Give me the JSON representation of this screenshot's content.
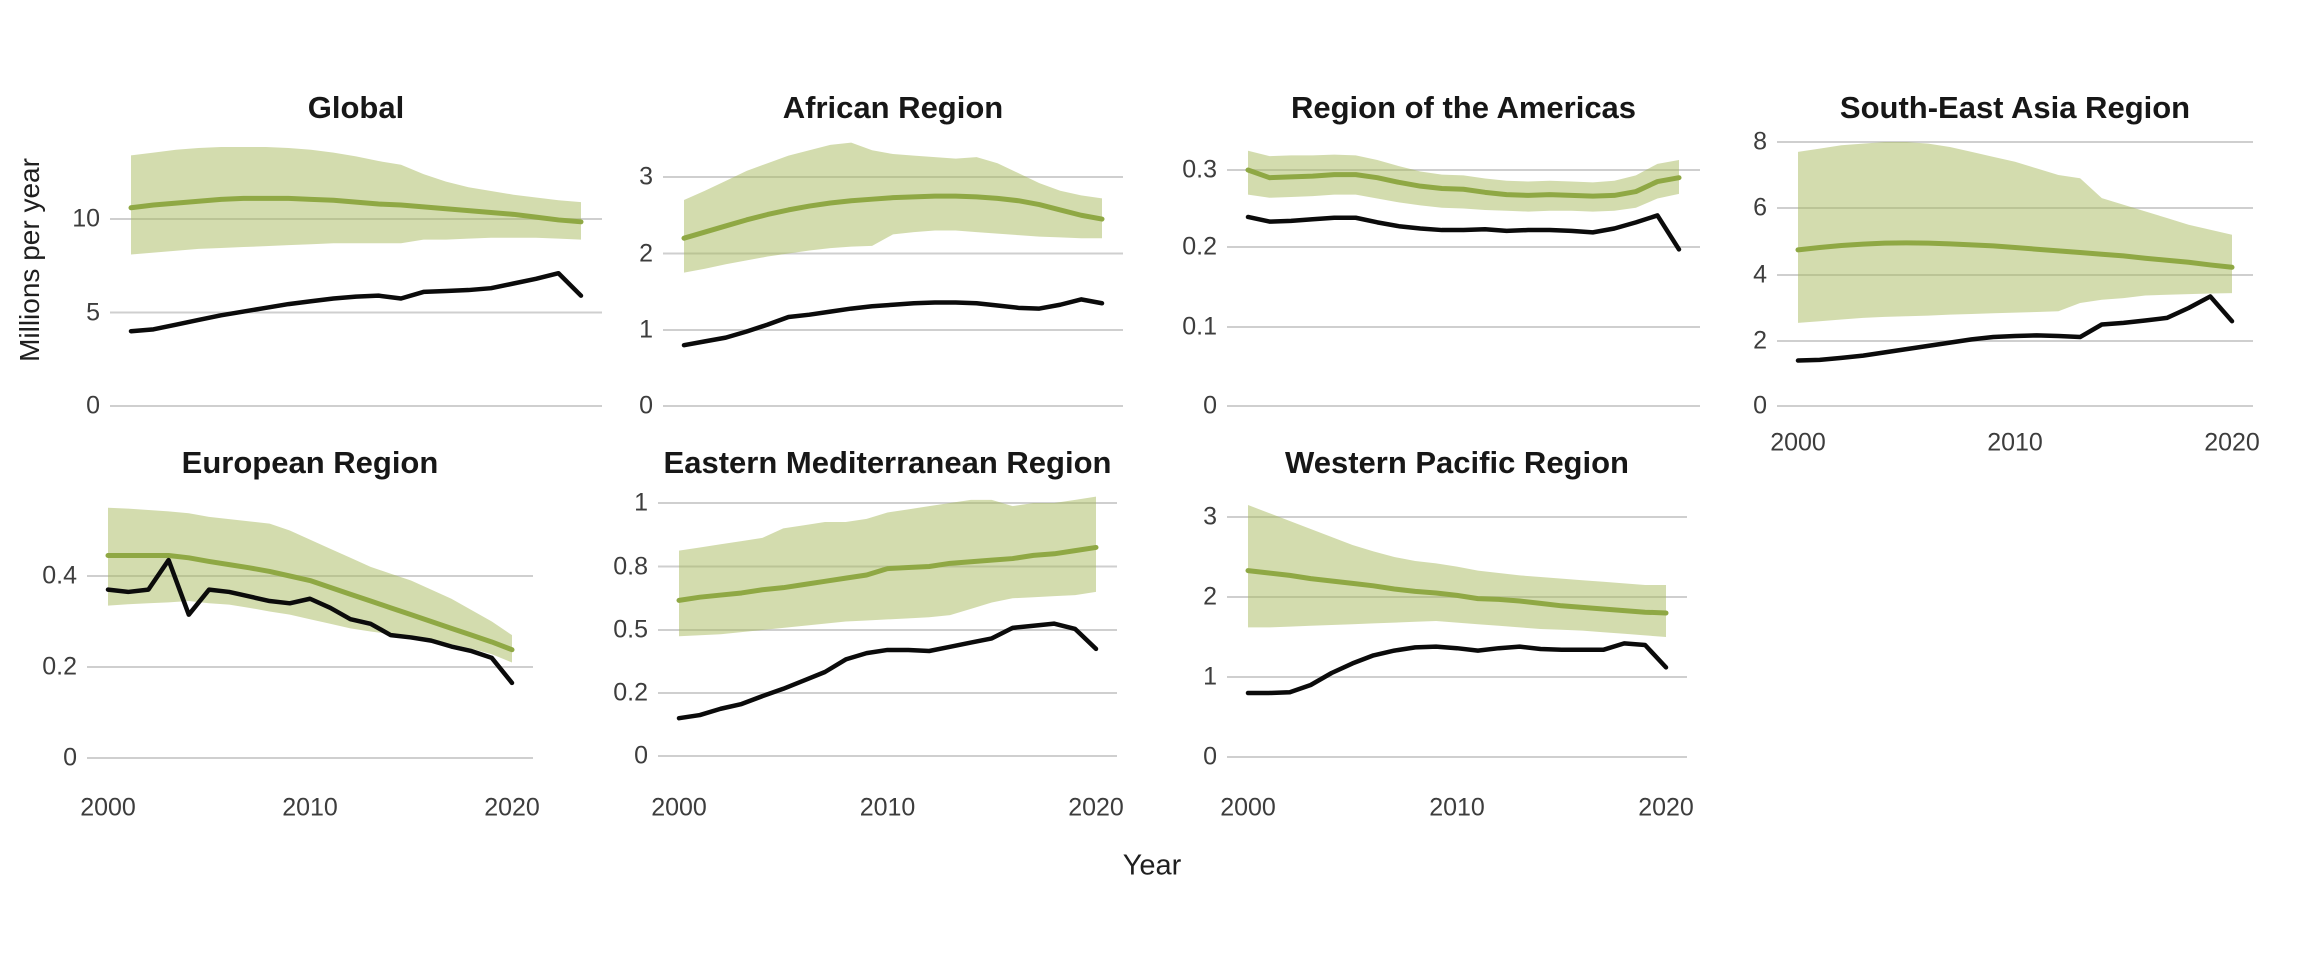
{
  "figure": {
    "y_axis_title": "Millions per year",
    "x_axis_title": "Year",
    "colors": {
      "estimate_line": "#8FA844",
      "uncertainty_ribbon": "#A7B95D",
      "ribbon_opacity": 0.5,
      "black_line": "#0b0b0b",
      "gridline": "#cfcfcf",
      "title_text": "#171717",
      "axis_text": "#3d3d3d"
    }
  },
  "chart_data": {
    "type": "line",
    "x_axis_label": "Year",
    "y_axis_label": "Millions per year",
    "x_range": [
      2000,
      2020
    ],
    "years": [
      2000,
      2001,
      2002,
      2003,
      2004,
      2005,
      2006,
      2007,
      2008,
      2009,
      2010,
      2011,
      2012,
      2013,
      2014,
      2015,
      2016,
      2017,
      2018,
      2019,
      2020
    ],
    "legend": "none (two series per panel: green estimate line with shaded uncertainty band, black line)",
    "panels": [
      {
        "id": "global",
        "title": "Global",
        "ybreaks": [
          0,
          5,
          10
        ],
        "ytick_labels": [
          "0",
          "5",
          "10"
        ],
        "xtick_labels": [],
        "series": {
          "green_line": [
            10.6,
            10.75,
            10.85,
            10.95,
            11.05,
            11.1,
            11.1,
            11.1,
            11.05,
            11.0,
            10.9,
            10.8,
            10.75,
            10.65,
            10.55,
            10.45,
            10.35,
            10.25,
            10.1,
            9.95,
            9.85
          ],
          "band_upper": [
            13.4,
            13.55,
            13.7,
            13.8,
            13.85,
            13.85,
            13.85,
            13.8,
            13.7,
            13.55,
            13.35,
            13.1,
            12.9,
            12.4,
            12.0,
            11.7,
            11.5,
            11.3,
            11.15,
            11.0,
            10.9
          ],
          "band_lower": [
            8.1,
            8.2,
            8.3,
            8.4,
            8.45,
            8.5,
            8.55,
            8.6,
            8.65,
            8.7,
            8.7,
            8.7,
            8.7,
            8.9,
            8.9,
            8.95,
            9.0,
            9.0,
            9.0,
            8.95,
            8.9
          ],
          "black_line": [
            4.0,
            4.1,
            4.35,
            4.6,
            4.85,
            5.05,
            5.25,
            5.45,
            5.6,
            5.75,
            5.85,
            5.9,
            5.75,
            6.1,
            6.15,
            6.2,
            6.3,
            6.55,
            6.8,
            7.1,
            5.9
          ]
        }
      },
      {
        "id": "african",
        "title": "African Region",
        "ybreaks": [
          0,
          1,
          2,
          3
        ],
        "ytick_labels": [
          "0",
          "1",
          "2",
          "3"
        ],
        "xtick_labels": [],
        "series": {
          "green_line": [
            2.2,
            2.28,
            2.36,
            2.44,
            2.51,
            2.57,
            2.62,
            2.66,
            2.69,
            2.71,
            2.73,
            2.74,
            2.75,
            2.75,
            2.74,
            2.72,
            2.69,
            2.64,
            2.57,
            2.5,
            2.45
          ],
          "band_upper": [
            2.7,
            2.82,
            2.95,
            3.08,
            3.18,
            3.28,
            3.35,
            3.42,
            3.45,
            3.35,
            3.3,
            3.28,
            3.26,
            3.24,
            3.26,
            3.18,
            3.05,
            2.92,
            2.82,
            2.76,
            2.72
          ],
          "band_lower": [
            1.75,
            1.8,
            1.86,
            1.91,
            1.96,
            2.0,
            2.04,
            2.07,
            2.09,
            2.1,
            2.25,
            2.28,
            2.3,
            2.3,
            2.28,
            2.26,
            2.24,
            2.22,
            2.21,
            2.2,
            2.2
          ],
          "black_line": [
            0.8,
            0.85,
            0.9,
            0.98,
            1.07,
            1.17,
            1.2,
            1.24,
            1.28,
            1.31,
            1.33,
            1.35,
            1.36,
            1.36,
            1.35,
            1.32,
            1.29,
            1.28,
            1.33,
            1.4,
            1.35
          ]
        }
      },
      {
        "id": "americas",
        "title": "Region of the Americas",
        "ybreaks": [
          0,
          0.1,
          0.2,
          0.3
        ],
        "ytick_labels": [
          "0",
          "0.1",
          "0.2",
          "0.3"
        ],
        "xtick_labels": [],
        "series": {
          "green_line": [
            0.3,
            0.29,
            0.291,
            0.292,
            0.294,
            0.294,
            0.29,
            0.284,
            0.279,
            0.276,
            0.275,
            0.271,
            0.268,
            0.267,
            0.268,
            0.267,
            0.266,
            0.267,
            0.272,
            0.285,
            0.29
          ],
          "band_upper": [
            0.325,
            0.318,
            0.319,
            0.319,
            0.32,
            0.319,
            0.313,
            0.305,
            0.298,
            0.294,
            0.293,
            0.289,
            0.286,
            0.285,
            0.286,
            0.285,
            0.284,
            0.286,
            0.293,
            0.308,
            0.313
          ],
          "band_lower": [
            0.268,
            0.264,
            0.265,
            0.266,
            0.268,
            0.268,
            0.263,
            0.258,
            0.254,
            0.251,
            0.25,
            0.248,
            0.247,
            0.246,
            0.247,
            0.247,
            0.246,
            0.247,
            0.251,
            0.263,
            0.269
          ],
          "black_line": [
            0.239,
            0.233,
            0.234,
            0.236,
            0.238,
            0.238,
            0.232,
            0.227,
            0.224,
            0.222,
            0.222,
            0.223,
            0.221,
            0.222,
            0.222,
            0.221,
            0.219,
            0.224,
            0.232,
            0.241,
            0.197
          ]
        }
      },
      {
        "id": "sea",
        "title": "South-East Asia Region",
        "ybreaks": [
          0,
          2,
          4,
          6,
          8
        ],
        "ytick_labels": [
          "0",
          "2",
          "4",
          "6",
          "8"
        ],
        "xtick_labels": [
          "2000",
          "2010",
          "2020"
        ],
        "series": {
          "green_line": [
            4.75,
            4.82,
            4.88,
            4.92,
            4.95,
            4.96,
            4.95,
            4.93,
            4.9,
            4.87,
            4.82,
            4.77,
            4.72,
            4.67,
            4.62,
            4.57,
            4.5,
            4.44,
            4.38,
            4.3,
            4.23
          ],
          "band_upper": [
            7.7,
            7.8,
            7.9,
            7.95,
            8.0,
            8.0,
            7.95,
            7.85,
            7.7,
            7.55,
            7.4,
            7.2,
            7.0,
            6.9,
            6.3,
            6.1,
            5.9,
            5.7,
            5.5,
            5.35,
            5.2
          ],
          "band_lower": [
            2.55,
            2.6,
            2.65,
            2.7,
            2.73,
            2.75,
            2.77,
            2.8,
            2.82,
            2.84,
            2.86,
            2.88,
            2.9,
            3.15,
            3.25,
            3.3,
            3.38,
            3.4,
            3.42,
            3.44,
            3.45
          ],
          "black_line": [
            1.4,
            1.42,
            1.48,
            1.55,
            1.65,
            1.75,
            1.85,
            1.95,
            2.05,
            2.12,
            2.15,
            2.17,
            2.15,
            2.12,
            2.5,
            2.55,
            2.62,
            2.7,
            3.0,
            3.35,
            2.6
          ]
        }
      },
      {
        "id": "european",
        "title": "European Region",
        "ybreaks": [
          0,
          0.2,
          0.4
        ],
        "ytick_labels": [
          "0",
          "0.2",
          "0.4"
        ],
        "xtick_labels": [
          "2000",
          "2010",
          "2020"
        ],
        "series": {
          "green_line": [
            0.445,
            0.445,
            0.445,
            0.445,
            0.44,
            0.432,
            0.425,
            0.418,
            0.41,
            0.4,
            0.39,
            0.375,
            0.36,
            0.345,
            0.33,
            0.315,
            0.3,
            0.285,
            0.27,
            0.255,
            0.238
          ],
          "band_upper": [
            0.55,
            0.548,
            0.545,
            0.542,
            0.538,
            0.53,
            0.525,
            0.52,
            0.515,
            0.5,
            0.48,
            0.46,
            0.44,
            0.42,
            0.405,
            0.39,
            0.37,
            0.35,
            0.325,
            0.3,
            0.27
          ],
          "band_lower": [
            0.335,
            0.338,
            0.34,
            0.342,
            0.345,
            0.34,
            0.337,
            0.33,
            0.322,
            0.315,
            0.305,
            0.295,
            0.285,
            0.278,
            0.272,
            0.265,
            0.257,
            0.25,
            0.24,
            0.228,
            0.21
          ],
          "black_line": [
            0.37,
            0.365,
            0.37,
            0.435,
            0.315,
            0.37,
            0.365,
            0.355,
            0.345,
            0.34,
            0.35,
            0.33,
            0.305,
            0.295,
            0.27,
            0.265,
            0.258,
            0.245,
            0.235,
            0.22,
            0.165
          ]
        }
      },
      {
        "id": "emed",
        "title": "Eastern Mediterranean Region",
        "ybreaks": [
          0,
          0.2,
          0.5,
          0.8,
          1
        ],
        "ytick_labels": [
          "0",
          "0.2",
          "0.5",
          "0.8",
          "1"
        ],
        "xtick_labels": [
          "2000",
          "2010",
          "2020"
        ],
        "series": {
          "green_line": [
            0.64,
            0.655,
            0.665,
            0.675,
            0.69,
            0.7,
            0.715,
            0.73,
            0.745,
            0.76,
            0.79,
            0.795,
            0.8,
            0.81,
            0.815,
            0.82,
            0.825,
            0.835,
            0.84,
            0.85,
            0.86
          ],
          "band_upper": [
            0.85,
            0.86,
            0.87,
            0.88,
            0.89,
            0.92,
            0.93,
            0.94,
            0.94,
            0.95,
            0.97,
            0.98,
            0.99,
            1.0,
            1.01,
            1.01,
            0.99,
            1.0,
            1.0,
            1.01,
            1.02
          ],
          "band_lower": [
            0.47,
            0.475,
            0.48,
            0.49,
            0.5,
            0.51,
            0.52,
            0.53,
            0.54,
            0.545,
            0.55,
            0.555,
            0.56,
            0.57,
            0.6,
            0.63,
            0.65,
            0.655,
            0.66,
            0.665,
            0.68
          ],
          "black_line": [
            0.12,
            0.13,
            0.15,
            0.165,
            0.19,
            0.22,
            0.26,
            0.3,
            0.36,
            0.39,
            0.405,
            0.405,
            0.4,
            0.42,
            0.44,
            0.46,
            0.51,
            0.52,
            0.53,
            0.505,
            0.41
          ]
        }
      },
      {
        "id": "wpac",
        "title": "Western Pacific Region",
        "ybreaks": [
          0,
          1,
          2,
          3
        ],
        "ytick_labels": [
          "0",
          "1",
          "2",
          "3"
        ],
        "xtick_labels": [
          "2000",
          "2010",
          "2020"
        ],
        "series": {
          "green_line": [
            2.33,
            2.3,
            2.27,
            2.23,
            2.2,
            2.17,
            2.14,
            2.1,
            2.07,
            2.05,
            2.02,
            1.98,
            1.97,
            1.95,
            1.92,
            1.89,
            1.87,
            1.85,
            1.83,
            1.81,
            1.8
          ],
          "band_upper": [
            3.15,
            3.05,
            2.95,
            2.85,
            2.75,
            2.65,
            2.57,
            2.5,
            2.45,
            2.42,
            2.38,
            2.33,
            2.3,
            2.27,
            2.25,
            2.23,
            2.21,
            2.19,
            2.17,
            2.15,
            2.15
          ],
          "band_lower": [
            1.62,
            1.62,
            1.63,
            1.64,
            1.65,
            1.66,
            1.67,
            1.68,
            1.69,
            1.7,
            1.68,
            1.66,
            1.64,
            1.62,
            1.6,
            1.59,
            1.58,
            1.56,
            1.54,
            1.52,
            1.5
          ],
          "black_line": [
            0.8,
            0.8,
            0.81,
            0.9,
            1.05,
            1.17,
            1.27,
            1.33,
            1.37,
            1.38,
            1.36,
            1.33,
            1.36,
            1.38,
            1.35,
            1.34,
            1.34,
            1.34,
            1.42,
            1.4,
            1.12
          ]
        }
      }
    ]
  }
}
